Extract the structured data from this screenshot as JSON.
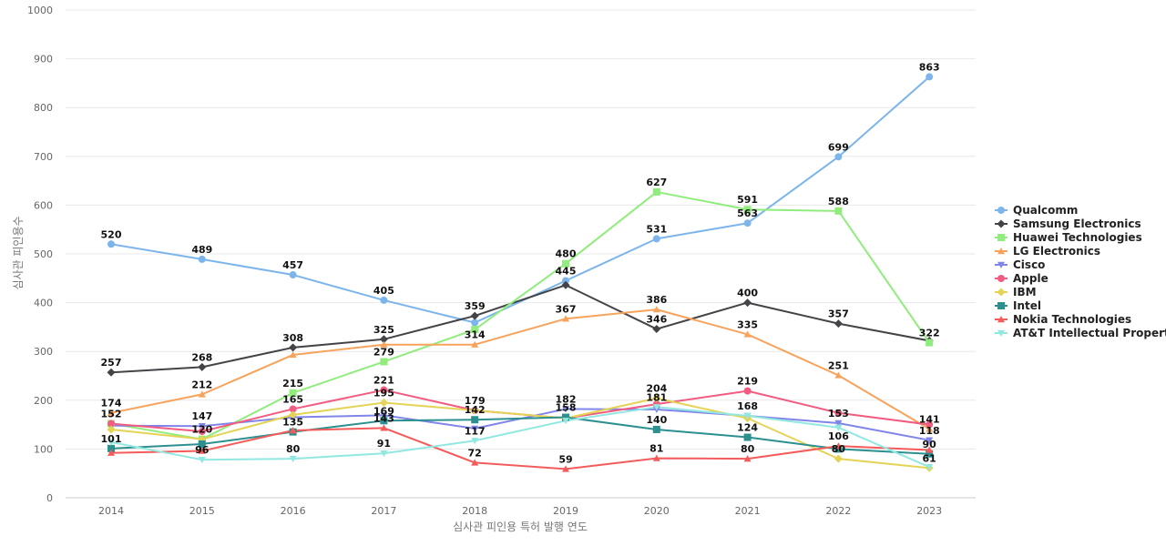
{
  "chart_data": {
    "type": "line",
    "x": [
      2014,
      2015,
      2016,
      2017,
      2018,
      2019,
      2020,
      2021,
      2022,
      2023
    ],
    "xlabel": "심사관 피인용 특허 발행 연도",
    "ylabel": "심사관 피인용수",
    "ylim": [
      0,
      1000
    ],
    "yticks": [
      0,
      100,
      200,
      300,
      400,
      500,
      600,
      700,
      800,
      900,
      1000
    ],
    "grid": true,
    "legend": "right",
    "series": [
      {
        "name": "Qualcomm",
        "color": "#7cb5ec",
        "marker": "circle",
        "values": [
          520,
          489,
          457,
          405,
          359,
          445,
          531,
          563,
          699,
          863
        ]
      },
      {
        "name": "Samsung Electronics",
        "color": "#434348",
        "marker": "diamond",
        "values": [
          257,
          268,
          308,
          325,
          373,
          436,
          346,
          400,
          357,
          322
        ]
      },
      {
        "name": "Huawei Technologies",
        "color": "#90ed7d",
        "marker": "square",
        "values": [
          152,
          120,
          215,
          279,
          345,
          480,
          627,
          591,
          588,
          318
        ]
      },
      {
        "name": "LG Electronics",
        "color": "#f7a35c",
        "marker": "triangle",
        "values": [
          174,
          212,
          293,
          314,
          314,
          367,
          386,
          335,
          251,
          141
        ]
      },
      {
        "name": "Cisco",
        "color": "#8085e9",
        "marker": "triangle-down",
        "values": [
          148,
          147,
          165,
          169,
          142,
          182,
          181,
          168,
          153,
          118
        ]
      },
      {
        "name": "Apple",
        "color": "#f15c80",
        "marker": "circle",
        "values": [
          152,
          136,
          182,
          221,
          179,
          163,
          192,
          219,
          174,
          150
        ]
      },
      {
        "name": "IBM",
        "color": "#e4d354",
        "marker": "diamond",
        "values": [
          140,
          120,
          170,
          195,
          179,
          163,
          204,
          163,
          80,
          61
        ]
      },
      {
        "name": "Intel",
        "color": "#2b908f",
        "marker": "square",
        "values": [
          101,
          110,
          135,
          158,
          160,
          165,
          140,
          124,
          100,
          90
        ]
      },
      {
        "name": "Nokia Technologies",
        "color": "#f45b5b",
        "marker": "triangle",
        "values": [
          92,
          96,
          138,
          143,
          72,
          59,
          81,
          80,
          106,
          98
        ]
      },
      {
        "name": "AT&T Intellectual Property",
        "color": "#91e8e1",
        "marker": "triangle-down",
        "values": [
          114,
          78,
          80,
          91,
          117,
          158,
          186,
          168,
          144,
          63
        ]
      }
    ],
    "data_labels": [
      {
        "series": 0,
        "index": 0,
        "text": "520"
      },
      {
        "series": 0,
        "index": 1,
        "text": "489"
      },
      {
        "series": 0,
        "index": 2,
        "text": "457"
      },
      {
        "series": 0,
        "index": 3,
        "text": "405"
      },
      {
        "series": 0,
        "index": 5,
        "text": "445"
      },
      {
        "series": 0,
        "index": 6,
        "text": "531"
      },
      {
        "series": 0,
        "index": 7,
        "text": "563"
      },
      {
        "series": 0,
        "index": 8,
        "text": "699"
      },
      {
        "series": 0,
        "index": 9,
        "text": "863"
      },
      {
        "series": 1,
        "index": 0,
        "text": "257"
      },
      {
        "series": 1,
        "index": 1,
        "text": "268"
      },
      {
        "series": 1,
        "index": 2,
        "text": "308"
      },
      {
        "series": 1,
        "index": 3,
        "text": "325"
      },
      {
        "series": 1,
        "index": 4,
        "text": "359"
      },
      {
        "series": 1,
        "index": 6,
        "text": "346"
      },
      {
        "series": 1,
        "index": 7,
        "text": "400"
      },
      {
        "series": 1,
        "index": 8,
        "text": "357"
      },
      {
        "series": 2,
        "index": 2,
        "text": "215"
      },
      {
        "series": 2,
        "index": 3,
        "text": "279"
      },
      {
        "series": 2,
        "index": 5,
        "text": "480"
      },
      {
        "series": 2,
        "index": 6,
        "text": "627"
      },
      {
        "series": 2,
        "index": 7,
        "text": "591"
      },
      {
        "series": 2,
        "index": 8,
        "text": "588"
      },
      {
        "series": 2,
        "index": 9,
        "text": "322"
      },
      {
        "series": 3,
        "index": 0,
        "text": "174"
      },
      {
        "series": 3,
        "index": 1,
        "text": "212"
      },
      {
        "series": 3,
        "index": 4,
        "text": "314"
      },
      {
        "series": 3,
        "index": 5,
        "text": "367"
      },
      {
        "series": 3,
        "index": 6,
        "text": "386"
      },
      {
        "series": 3,
        "index": 7,
        "text": "335"
      },
      {
        "series": 3,
        "index": 8,
        "text": "251"
      },
      {
        "series": 3,
        "index": 9,
        "text": "141"
      },
      {
        "series": 4,
        "index": 1,
        "text": "147"
      },
      {
        "series": 4,
        "index": 5,
        "text": "182"
      },
      {
        "series": 4,
        "index": 8,
        "text": "153"
      },
      {
        "series": 4,
        "index": 9,
        "text": "118"
      },
      {
        "series": 5,
        "index": 0,
        "text": "152"
      },
      {
        "series": 5,
        "index": 2,
        "text": "165"
      },
      {
        "series": 5,
        "index": 3,
        "text": "221"
      },
      {
        "series": 5,
        "index": 4,
        "text": "179"
      },
      {
        "series": 5,
        "index": 7,
        "text": "219"
      },
      {
        "series": 6,
        "index": 1,
        "text": "120"
      },
      {
        "series": 6,
        "index": 3,
        "text": "195"
      },
      {
        "series": 6,
        "index": 6,
        "text": "204"
      },
      {
        "series": 6,
        "index": 8,
        "text": "80"
      },
      {
        "series": 6,
        "index": 9,
        "text": "61"
      },
      {
        "series": 7,
        "index": 0,
        "text": "101"
      },
      {
        "series": 7,
        "index": 2,
        "text": "135"
      },
      {
        "series": 7,
        "index": 3,
        "text": "169"
      },
      {
        "series": 7,
        "index": 4,
        "text": "142"
      },
      {
        "series": 7,
        "index": 5,
        "text": "158"
      },
      {
        "series": 7,
        "index": 6,
        "text": "140"
      },
      {
        "series": 7,
        "index": 7,
        "text": "124"
      },
      {
        "series": 7,
        "index": 9,
        "text": "90"
      },
      {
        "series": 8,
        "index": 3,
        "text": "143"
      },
      {
        "series": 8,
        "index": 4,
        "text": "72"
      },
      {
        "series": 8,
        "index": 5,
        "text": "59"
      },
      {
        "series": 8,
        "index": 6,
        "text": "81"
      },
      {
        "series": 8,
        "index": 7,
        "text": "80"
      },
      {
        "series": 8,
        "index": 8,
        "text": "106"
      },
      {
        "series": 9,
        "index": 1,
        "text": "96"
      },
      {
        "series": 9,
        "index": 2,
        "text": "80"
      },
      {
        "series": 9,
        "index": 3,
        "text": "91"
      },
      {
        "series": 9,
        "index": 4,
        "text": "117"
      },
      {
        "series": 9,
        "index": 6,
        "text": "181"
      },
      {
        "series": 9,
        "index": 7,
        "text": "168"
      }
    ]
  }
}
